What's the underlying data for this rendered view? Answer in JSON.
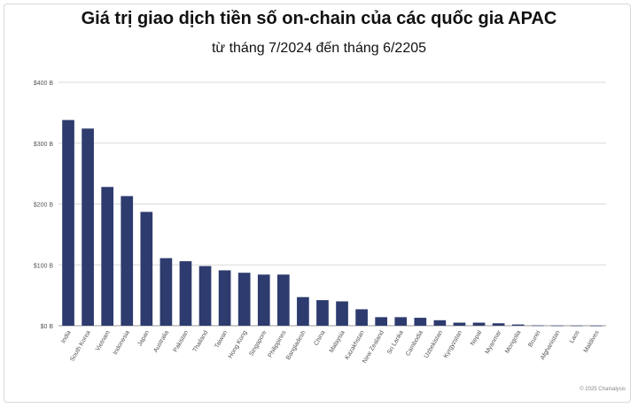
{
  "header": {
    "title": "Giá trị giao dịch tiền số on-chain của các quốc gia APAC",
    "subtitle": "từ tháng 7/2024 đến tháng 6/2205"
  },
  "footer": {
    "credit": "© 2025 Chainalysis"
  },
  "colors": {
    "bar": "#2d3b6e",
    "grid": "#d9d9d9",
    "axis_text": "#555555"
  },
  "chart_data": {
    "type": "bar",
    "title": "Giá trị giao dịch tiền số on-chain của các quốc gia APAC",
    "subtitle": "từ tháng 7/2024 đến tháng 6/2205",
    "xlabel": "",
    "ylabel": "",
    "ylim": [
      0,
      400
    ],
    "yticks": [
      0,
      100,
      200,
      300,
      400
    ],
    "ytick_labels": [
      "$0 B",
      "$100 B",
      "$200 B",
      "$300 B",
      "$400 B"
    ],
    "grid": true,
    "legend": "none",
    "categories": [
      "India",
      "South Korea",
      "Vietnam",
      "Indonesia",
      "Japan",
      "Australia",
      "Pakistan",
      "Thailand",
      "Taiwan",
      "Hong Kong",
      "Singapore",
      "Philippines",
      "Bangladesh",
      "China",
      "Malaysia",
      "Kazakhstan",
      "New Zealand",
      "Sri Lanka",
      "Cambodia",
      "Uzbekistan",
      "Kyrgyzstan",
      "Nepal",
      "Myanmar",
      "Mongolia",
      "Brunei",
      "Afghanistan",
      "Laos",
      "Maldives"
    ],
    "values": [
      338,
      324,
      228,
      213,
      187,
      111,
      106,
      98,
      91,
      87,
      84,
      84,
      47,
      42,
      40,
      27,
      14,
      14,
      13,
      9,
      5,
      5,
      4,
      2,
      0.5,
      0.3,
      0.2,
      0.1
    ]
  }
}
